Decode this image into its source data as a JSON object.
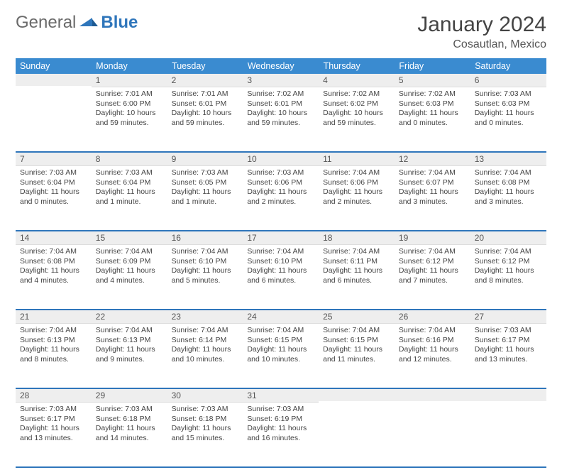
{
  "brand": {
    "part1": "General",
    "part2": "Blue"
  },
  "title": "January 2024",
  "subtitle": "Cosautlan, Mexico",
  "colors": {
    "header_bg": "#3a8bd0",
    "header_fg": "#ffffff",
    "row_border": "#2f76bb",
    "daynum_bg": "#eeeeee",
    "text": "#444444"
  },
  "weekdays": [
    "Sunday",
    "Monday",
    "Tuesday",
    "Wednesday",
    "Thursday",
    "Friday",
    "Saturday"
  ],
  "weeks": [
    [
      {
        "num": "",
        "lines": []
      },
      {
        "num": "1",
        "lines": [
          "Sunrise: 7:01 AM",
          "Sunset: 6:00 PM",
          "Daylight: 10 hours",
          "and 59 minutes."
        ]
      },
      {
        "num": "2",
        "lines": [
          "Sunrise: 7:01 AM",
          "Sunset: 6:01 PM",
          "Daylight: 10 hours",
          "and 59 minutes."
        ]
      },
      {
        "num": "3",
        "lines": [
          "Sunrise: 7:02 AM",
          "Sunset: 6:01 PM",
          "Daylight: 10 hours",
          "and 59 minutes."
        ]
      },
      {
        "num": "4",
        "lines": [
          "Sunrise: 7:02 AM",
          "Sunset: 6:02 PM",
          "Daylight: 10 hours",
          "and 59 minutes."
        ]
      },
      {
        "num": "5",
        "lines": [
          "Sunrise: 7:02 AM",
          "Sunset: 6:03 PM",
          "Daylight: 11 hours",
          "and 0 minutes."
        ]
      },
      {
        "num": "6",
        "lines": [
          "Sunrise: 7:03 AM",
          "Sunset: 6:03 PM",
          "Daylight: 11 hours",
          "and 0 minutes."
        ]
      }
    ],
    [
      {
        "num": "7",
        "lines": [
          "Sunrise: 7:03 AM",
          "Sunset: 6:04 PM",
          "Daylight: 11 hours",
          "and 0 minutes."
        ]
      },
      {
        "num": "8",
        "lines": [
          "Sunrise: 7:03 AM",
          "Sunset: 6:04 PM",
          "Daylight: 11 hours",
          "and 1 minute."
        ]
      },
      {
        "num": "9",
        "lines": [
          "Sunrise: 7:03 AM",
          "Sunset: 6:05 PM",
          "Daylight: 11 hours",
          "and 1 minute."
        ]
      },
      {
        "num": "10",
        "lines": [
          "Sunrise: 7:03 AM",
          "Sunset: 6:06 PM",
          "Daylight: 11 hours",
          "and 2 minutes."
        ]
      },
      {
        "num": "11",
        "lines": [
          "Sunrise: 7:04 AM",
          "Sunset: 6:06 PM",
          "Daylight: 11 hours",
          "and 2 minutes."
        ]
      },
      {
        "num": "12",
        "lines": [
          "Sunrise: 7:04 AM",
          "Sunset: 6:07 PM",
          "Daylight: 11 hours",
          "and 3 minutes."
        ]
      },
      {
        "num": "13",
        "lines": [
          "Sunrise: 7:04 AM",
          "Sunset: 6:08 PM",
          "Daylight: 11 hours",
          "and 3 minutes."
        ]
      }
    ],
    [
      {
        "num": "14",
        "lines": [
          "Sunrise: 7:04 AM",
          "Sunset: 6:08 PM",
          "Daylight: 11 hours",
          "and 4 minutes."
        ]
      },
      {
        "num": "15",
        "lines": [
          "Sunrise: 7:04 AM",
          "Sunset: 6:09 PM",
          "Daylight: 11 hours",
          "and 4 minutes."
        ]
      },
      {
        "num": "16",
        "lines": [
          "Sunrise: 7:04 AM",
          "Sunset: 6:10 PM",
          "Daylight: 11 hours",
          "and 5 minutes."
        ]
      },
      {
        "num": "17",
        "lines": [
          "Sunrise: 7:04 AM",
          "Sunset: 6:10 PM",
          "Daylight: 11 hours",
          "and 6 minutes."
        ]
      },
      {
        "num": "18",
        "lines": [
          "Sunrise: 7:04 AM",
          "Sunset: 6:11 PM",
          "Daylight: 11 hours",
          "and 6 minutes."
        ]
      },
      {
        "num": "19",
        "lines": [
          "Sunrise: 7:04 AM",
          "Sunset: 6:12 PM",
          "Daylight: 11 hours",
          "and 7 minutes."
        ]
      },
      {
        "num": "20",
        "lines": [
          "Sunrise: 7:04 AM",
          "Sunset: 6:12 PM",
          "Daylight: 11 hours",
          "and 8 minutes."
        ]
      }
    ],
    [
      {
        "num": "21",
        "lines": [
          "Sunrise: 7:04 AM",
          "Sunset: 6:13 PM",
          "Daylight: 11 hours",
          "and 8 minutes."
        ]
      },
      {
        "num": "22",
        "lines": [
          "Sunrise: 7:04 AM",
          "Sunset: 6:13 PM",
          "Daylight: 11 hours",
          "and 9 minutes."
        ]
      },
      {
        "num": "23",
        "lines": [
          "Sunrise: 7:04 AM",
          "Sunset: 6:14 PM",
          "Daylight: 11 hours",
          "and 10 minutes."
        ]
      },
      {
        "num": "24",
        "lines": [
          "Sunrise: 7:04 AM",
          "Sunset: 6:15 PM",
          "Daylight: 11 hours",
          "and 10 minutes."
        ]
      },
      {
        "num": "25",
        "lines": [
          "Sunrise: 7:04 AM",
          "Sunset: 6:15 PM",
          "Daylight: 11 hours",
          "and 11 minutes."
        ]
      },
      {
        "num": "26",
        "lines": [
          "Sunrise: 7:04 AM",
          "Sunset: 6:16 PM",
          "Daylight: 11 hours",
          "and 12 minutes."
        ]
      },
      {
        "num": "27",
        "lines": [
          "Sunrise: 7:03 AM",
          "Sunset: 6:17 PM",
          "Daylight: 11 hours",
          "and 13 minutes."
        ]
      }
    ],
    [
      {
        "num": "28",
        "lines": [
          "Sunrise: 7:03 AM",
          "Sunset: 6:17 PM",
          "Daylight: 11 hours",
          "and 13 minutes."
        ]
      },
      {
        "num": "29",
        "lines": [
          "Sunrise: 7:03 AM",
          "Sunset: 6:18 PM",
          "Daylight: 11 hours",
          "and 14 minutes."
        ]
      },
      {
        "num": "30",
        "lines": [
          "Sunrise: 7:03 AM",
          "Sunset: 6:18 PM",
          "Daylight: 11 hours",
          "and 15 minutes."
        ]
      },
      {
        "num": "31",
        "lines": [
          "Sunrise: 7:03 AM",
          "Sunset: 6:19 PM",
          "Daylight: 11 hours",
          "and 16 minutes."
        ]
      },
      {
        "num": "",
        "lines": []
      },
      {
        "num": "",
        "lines": []
      },
      {
        "num": "",
        "lines": []
      }
    ]
  ]
}
